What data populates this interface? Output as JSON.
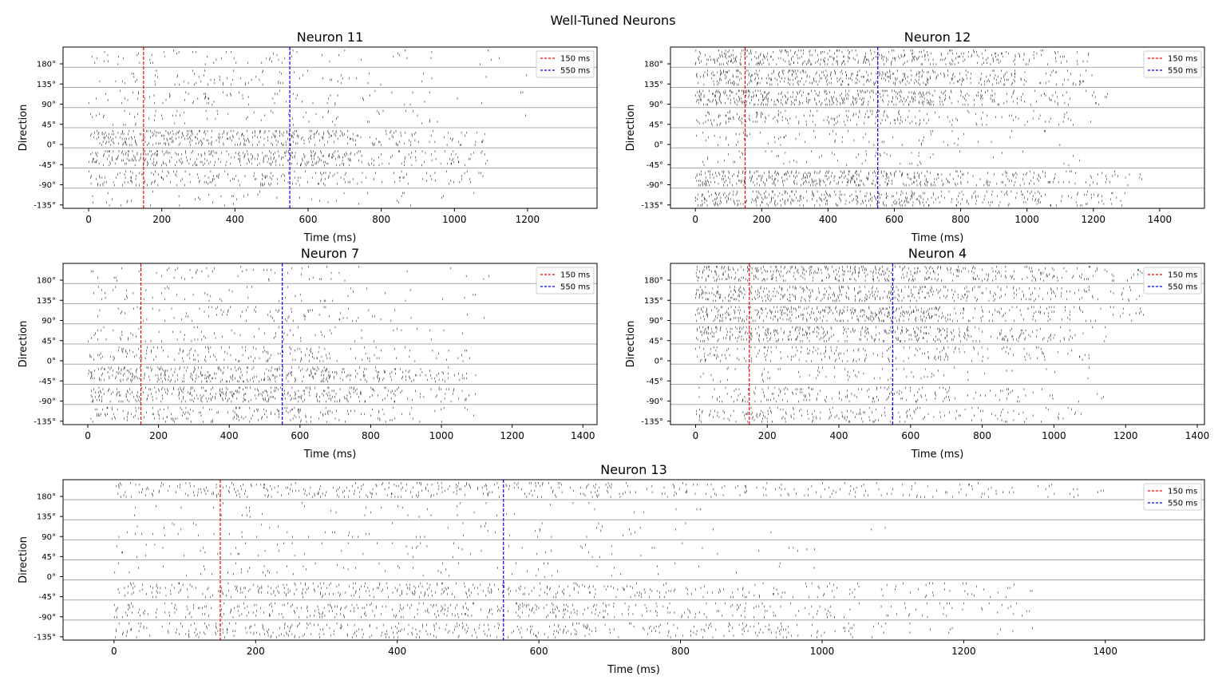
{
  "figure": {
    "title": "Well-Tuned Neurons"
  },
  "chart_data": [
    {
      "type": "raster",
      "title": "Neuron 11",
      "xlabel": "Time (ms)",
      "ylabel": "Direction",
      "xlim": [
        -70,
        1390
      ],
      "xticks": [
        0,
        200,
        400,
        600,
        800,
        1000,
        1200
      ],
      "yticks": [
        "180°",
        "135°",
        "90°",
        "45°",
        "0°",
        "-45°",
        "-90°",
        "-135°"
      ],
      "vlines": [
        {
          "x": 150,
          "label": "150 ms",
          "color": "#ff0000"
        },
        {
          "x": 550,
          "label": "550 ms",
          "color": "#0000ff"
        }
      ],
      "legend": "top-right",
      "direction_firing": {
        "180°": {
          "rate": "low",
          "duration_ms": 1200
        },
        "135°": {
          "rate": "low",
          "duration_ms": 1200
        },
        "90°": {
          "rate": "low",
          "duration_ms": 1200
        },
        "45°": {
          "rate": "low",
          "duration_ms": 1200
        },
        "0°": {
          "rate": "high",
          "duration_ms": 1100
        },
        "-45°": {
          "rate": "high",
          "duration_ms": 1100
        },
        "-90°": {
          "rate": "medium",
          "duration_ms": 1100
        },
        "-135°": {
          "rate": "low",
          "duration_ms": 1100
        }
      }
    },
    {
      "type": "raster",
      "title": "Neuron 12",
      "xlabel": "Time (ms)",
      "ylabel": "Direction",
      "xlim": [
        -75,
        1535
      ],
      "xticks": [
        0,
        200,
        400,
        600,
        800,
        1000,
        1200,
        1400
      ],
      "yticks": [
        "180°",
        "135°",
        "90°",
        "45°",
        "0°",
        "-45°",
        "-90°",
        "-135°"
      ],
      "vlines": [
        {
          "x": 150,
          "label": "150 ms",
          "color": "#ff0000"
        },
        {
          "x": 550,
          "label": "550 ms",
          "color": "#0000ff"
        }
      ],
      "legend": "top-right",
      "direction_firing": {
        "180°": {
          "rate": "high",
          "duration_ms": 1200
        },
        "135°": {
          "rate": "high",
          "duration_ms": 1200
        },
        "90°": {
          "rate": "high",
          "duration_ms": 1250
        },
        "45°": {
          "rate": "medium",
          "duration_ms": 1200
        },
        "0°": {
          "rate": "low",
          "duration_ms": 1100
        },
        "-45°": {
          "rate": "low",
          "duration_ms": 1200
        },
        "-90°": {
          "rate": "high",
          "duration_ms": 1350
        },
        "-135°": {
          "rate": "high",
          "duration_ms": 1300
        }
      }
    },
    {
      "type": "raster",
      "title": "Neuron 7",
      "xlabel": "Time (ms)",
      "ylabel": "Direction",
      "xlim": [
        -70,
        1440
      ],
      "xticks": [
        0,
        200,
        400,
        600,
        800,
        1000,
        1200,
        1400
      ],
      "yticks": [
        "180°",
        "135°",
        "90°",
        "45°",
        "0°",
        "-45°",
        "-90°",
        "-135°"
      ],
      "vlines": [
        {
          "x": 150,
          "label": "150 ms",
          "color": "#ff0000"
        },
        {
          "x": 550,
          "label": "550 ms",
          "color": "#0000ff"
        }
      ],
      "legend": "top-right",
      "direction_firing": {
        "180°": {
          "rate": "low",
          "duration_ms": 1150
        },
        "135°": {
          "rate": "low",
          "duration_ms": 1150
        },
        "90°": {
          "rate": "low",
          "duration_ms": 1150
        },
        "45°": {
          "rate": "low",
          "duration_ms": 1100
        },
        "0°": {
          "rate": "medium",
          "duration_ms": 1100
        },
        "-45°": {
          "rate": "high",
          "duration_ms": 1100
        },
        "-90°": {
          "rate": "high",
          "duration_ms": 1100
        },
        "-135°": {
          "rate": "medium",
          "duration_ms": 1100
        }
      }
    },
    {
      "type": "raster",
      "title": "Neuron 4",
      "xlabel": "Time (ms)",
      "ylabel": "Direction",
      "xlim": [
        -70,
        1420
      ],
      "xticks": [
        0,
        200,
        400,
        600,
        800,
        1000,
        1200,
        1400
      ],
      "yticks": [
        "180°",
        "135°",
        "90°",
        "45°",
        "0°",
        "-45°",
        "-90°",
        "-135°"
      ],
      "vlines": [
        {
          "x": 150,
          "label": "150 ms",
          "color": "#ff0000"
        },
        {
          "x": 550,
          "label": "550 ms",
          "color": "#0000ff"
        }
      ],
      "legend": "top-right",
      "direction_firing": {
        "180°": {
          "rate": "high",
          "duration_ms": 1250
        },
        "135°": {
          "rate": "high",
          "duration_ms": 1250
        },
        "90°": {
          "rate": "high",
          "duration_ms": 1250
        },
        "45°": {
          "rate": "high",
          "duration_ms": 1150
        },
        "0°": {
          "rate": "medium",
          "duration_ms": 1100
        },
        "-45°": {
          "rate": "low",
          "duration_ms": 1100
        },
        "-90°": {
          "rate": "medium",
          "duration_ms": 1150
        },
        "-135°": {
          "rate": "medium",
          "duration_ms": 1100
        }
      }
    },
    {
      "type": "raster",
      "title": "Neuron 13",
      "xlabel": "Time (ms)",
      "ylabel": "Direction",
      "xlim": [
        -72,
        1540
      ],
      "xticks": [
        0,
        200,
        400,
        600,
        800,
        1000,
        1200,
        1400
      ],
      "yticks": [
        "180°",
        "135°",
        "90°",
        "45°",
        "0°",
        "-45°",
        "-90°",
        "-135°"
      ],
      "vlines": [
        {
          "x": 150,
          "label": "150 ms",
          "color": "#ff0000"
        },
        {
          "x": 550,
          "label": "550 ms",
          "color": "#0000ff"
        }
      ],
      "legend": "top-right",
      "direction_firing": {
        "180°": {
          "rate": "high",
          "duration_ms": 1400
        },
        "135°": {
          "rate": "low",
          "duration_ms": 1100
        },
        "90°": {
          "rate": "low",
          "duration_ms": 1100
        },
        "45°": {
          "rate": "low",
          "duration_ms": 1050
        },
        "0°": {
          "rate": "low",
          "duration_ms": 1050
        },
        "-45°": {
          "rate": "high",
          "duration_ms": 1300
        },
        "-90°": {
          "rate": "high",
          "duration_ms": 1300
        },
        "-135°": {
          "rate": "high",
          "duration_ms": 1300
        }
      }
    }
  ]
}
